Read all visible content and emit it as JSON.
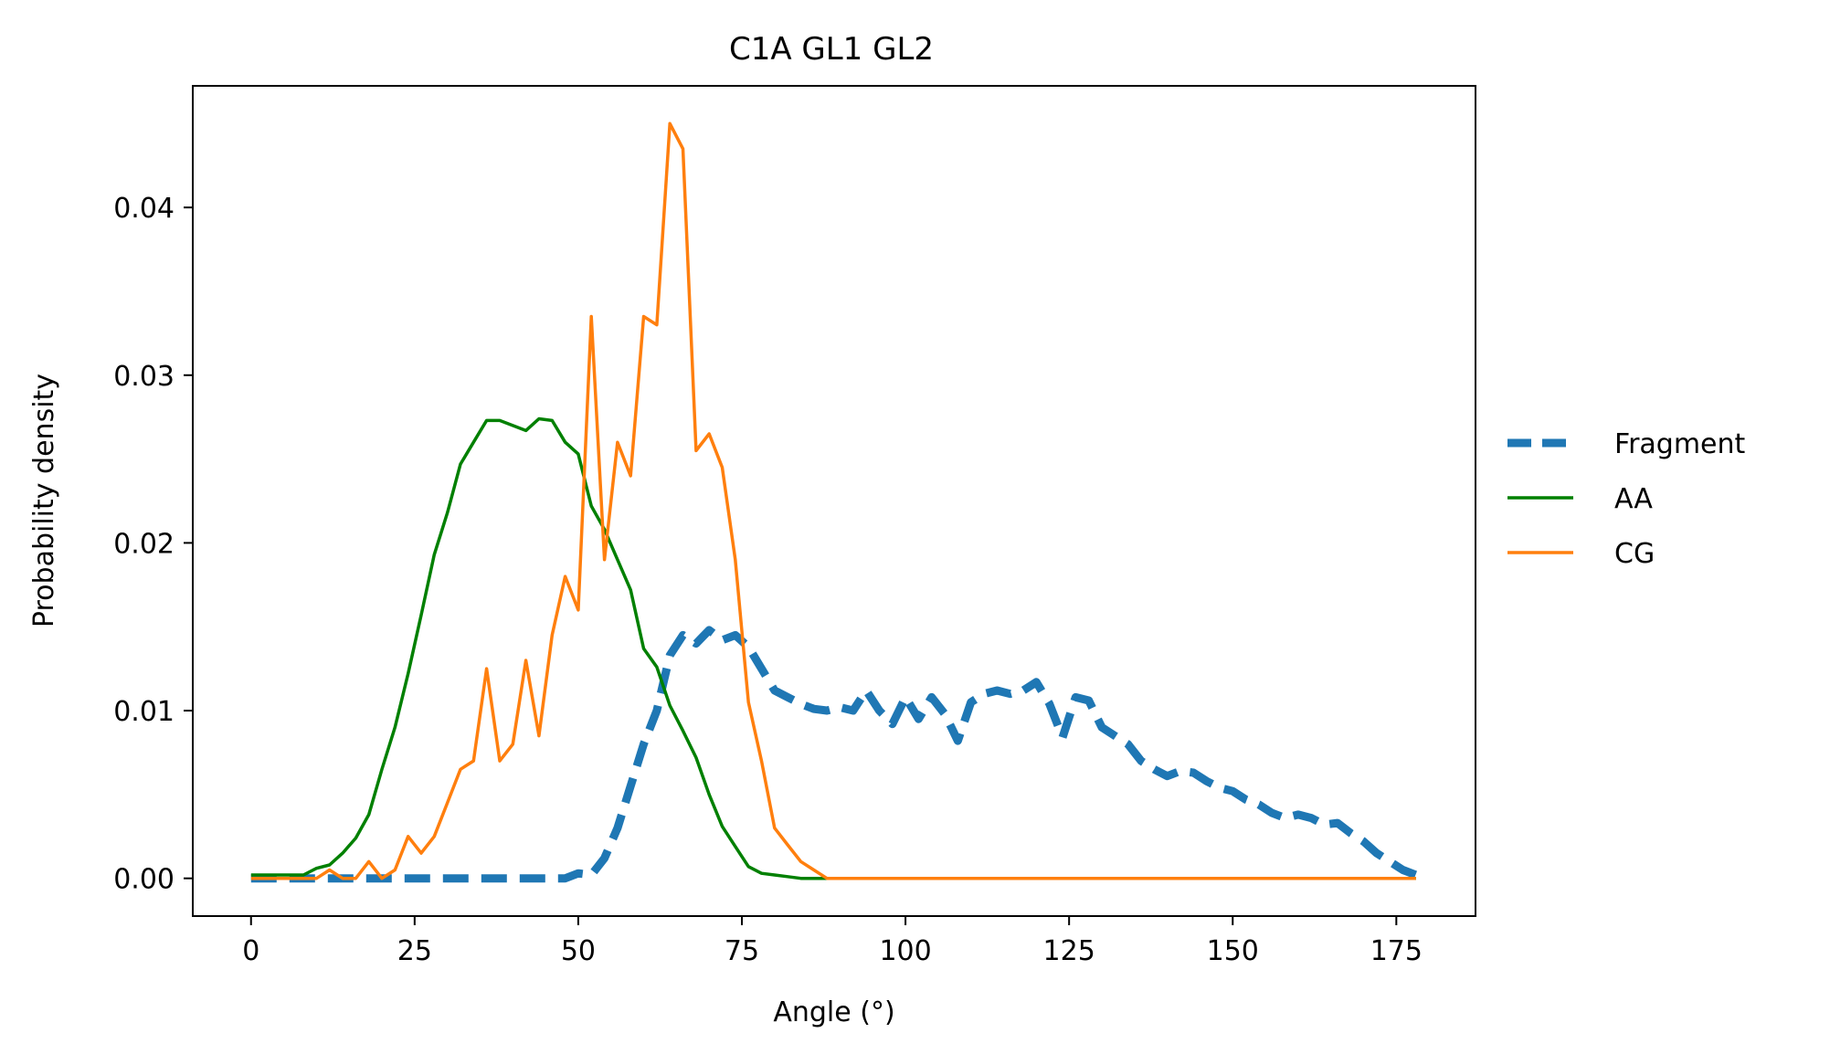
{
  "chart_data": {
    "type": "line",
    "title": "C1A GL1 GL2",
    "xlabel": "Angle (°)",
    "ylabel": "Probability density",
    "xlim": [
      -8.9,
      187.1
    ],
    "ylim": [
      -0.00225,
      0.04725
    ],
    "xticks": [
      0,
      25,
      50,
      75,
      100,
      125,
      150,
      175
    ],
    "yticks": [
      0.0,
      0.01,
      0.02,
      0.03,
      0.04
    ],
    "ytick_labels": [
      "0.00",
      "0.01",
      "0.02",
      "0.03",
      "0.04"
    ],
    "legend_position": "outside-right",
    "grid": false,
    "series": [
      {
        "name": "Fragment",
        "color": "#1f77b4",
        "style": "dashed",
        "x": [
          0,
          2,
          4,
          6,
          8,
          10,
          12,
          14,
          16,
          18,
          20,
          22,
          24,
          26,
          28,
          30,
          32,
          34,
          36,
          38,
          40,
          42,
          44,
          46,
          48,
          50,
          52,
          54,
          56,
          58,
          60,
          62,
          64,
          66,
          68,
          70,
          72,
          74,
          76,
          78,
          80,
          82,
          84,
          86,
          88,
          90,
          92,
          94,
          96,
          98,
          100,
          102,
          104,
          106,
          108,
          110,
          112,
          114,
          116,
          118,
          120,
          122,
          124,
          126,
          128,
          130,
          132,
          134,
          136,
          138,
          140,
          142,
          144,
          146,
          148,
          150,
          152,
          154,
          156,
          158,
          160,
          162,
          164,
          166,
          168,
          170,
          172,
          174,
          176,
          178
        ],
        "y": [
          0,
          0,
          0,
          0,
          0,
          0,
          0,
          0,
          0,
          0,
          0,
          0,
          0,
          0,
          0,
          0,
          0,
          0,
          0,
          0,
          0,
          0,
          0,
          0,
          0,
          0.0003,
          0.0002,
          0.0012,
          0.003,
          0.0055,
          0.008,
          0.01,
          0.0133,
          0.0145,
          0.014,
          0.0148,
          0.0142,
          0.0145,
          0.0138,
          0.0125,
          0.0112,
          0.0108,
          0.0104,
          0.0101,
          0.01,
          0.0102,
          0.01,
          0.0112,
          0.01,
          0.0092,
          0.0108,
          0.0095,
          0.0108,
          0.0098,
          0.0082,
          0.0105,
          0.011,
          0.0112,
          0.011,
          0.0112,
          0.0117,
          0.0104,
          0.0084,
          0.0108,
          0.0106,
          0.009,
          0.0085,
          0.008,
          0.007,
          0.0065,
          0.0061,
          0.0064,
          0.0063,
          0.0058,
          0.0054,
          0.0052,
          0.0047,
          0.0044,
          0.0039,
          0.0036,
          0.0038,
          0.0036,
          0.0032,
          0.0033,
          0.0027,
          0.0022,
          0.0015,
          0.001,
          0.0005,
          0.0002
        ]
      },
      {
        "name": "AA",
        "color": "#008000",
        "style": "solid",
        "x": [
          0,
          2,
          4,
          6,
          8,
          10,
          12,
          14,
          16,
          18,
          20,
          22,
          24,
          26,
          28,
          30,
          32,
          34,
          36,
          38,
          40,
          42,
          44,
          46,
          48,
          50,
          52,
          54,
          56,
          58,
          60,
          62,
          64,
          66,
          68,
          70,
          72,
          74,
          76,
          78,
          80,
          82,
          84,
          86,
          88,
          90,
          92,
          94,
          96,
          98,
          100,
          102,
          104,
          106,
          108,
          110,
          112,
          114,
          116,
          118,
          120,
          122,
          124,
          126,
          128,
          130,
          132,
          134,
          136,
          138,
          140,
          142,
          144,
          146,
          148,
          150,
          152,
          154,
          156,
          158,
          160,
          162,
          164,
          166,
          168,
          170,
          172,
          174,
          176,
          178
        ],
        "y": [
          0.0002,
          0.0002,
          0.0002,
          0.0002,
          0.0002,
          0.0006,
          0.0008,
          0.0015,
          0.0024,
          0.0038,
          0.0065,
          0.009,
          0.0122,
          0.0157,
          0.0193,
          0.0218,
          0.0247,
          0.026,
          0.0273,
          0.0273,
          0.027,
          0.0267,
          0.0274,
          0.0273,
          0.026,
          0.0253,
          0.0222,
          0.0208,
          0.019,
          0.0172,
          0.0137,
          0.0126,
          0.0103,
          0.0088,
          0.0072,
          0.005,
          0.0031,
          0.0019,
          0.0007,
          0.0003,
          0.0002,
          0.0001,
          0,
          0,
          0,
          0,
          0,
          0,
          0,
          0,
          0,
          0,
          0,
          0,
          0,
          0,
          0,
          0,
          0,
          0,
          0,
          0,
          0,
          0,
          0,
          0,
          0,
          0,
          0,
          0,
          0,
          0,
          0,
          0,
          0,
          0,
          0,
          0,
          0,
          0,
          0,
          0,
          0,
          0,
          0,
          0,
          0,
          0,
          0,
          0
        ]
      },
      {
        "name": "CG",
        "color": "#ff7f0e",
        "style": "solid",
        "x": [
          0,
          2,
          4,
          6,
          8,
          10,
          12,
          14,
          16,
          18,
          20,
          22,
          24,
          26,
          28,
          30,
          32,
          34,
          36,
          38,
          40,
          42,
          44,
          46,
          48,
          50,
          52,
          54,
          56,
          58,
          60,
          62,
          64,
          66,
          68,
          70,
          72,
          74,
          76,
          78,
          80,
          82,
          84,
          86,
          88,
          90,
          92,
          94,
          96,
          98,
          100,
          102,
          104,
          106,
          108,
          110,
          112,
          114,
          116,
          118,
          120,
          122,
          124,
          126,
          128,
          130,
          132,
          134,
          136,
          138,
          140,
          142,
          144,
          146,
          148,
          150,
          152,
          154,
          156,
          158,
          160,
          162,
          164,
          166,
          168,
          170,
          172,
          174,
          176,
          178
        ],
        "y": [
          0,
          0,
          0,
          0,
          0,
          0,
          0.0005,
          0,
          0,
          0.001,
          0,
          0.0005,
          0.0025,
          0.0015,
          0.0025,
          0.0045,
          0.0065,
          0.007,
          0.0125,
          0.007,
          0.008,
          0.013,
          0.0085,
          0.0145,
          0.018,
          0.016,
          0.0335,
          0.019,
          0.026,
          0.024,
          0.0335,
          0.033,
          0.045,
          0.0435,
          0.0255,
          0.0265,
          0.0245,
          0.019,
          0.0105,
          0.007,
          0.003,
          0.002,
          0.001,
          0.0005,
          0,
          0,
          0,
          0,
          0,
          0,
          0,
          0,
          0,
          0,
          0,
          0,
          0,
          0,
          0,
          0,
          0,
          0,
          0,
          0,
          0,
          0,
          0,
          0,
          0,
          0,
          0,
          0,
          0,
          0,
          0,
          0,
          0,
          0,
          0,
          0,
          0,
          0,
          0,
          0,
          0,
          0,
          0,
          0,
          0,
          0
        ]
      }
    ]
  }
}
